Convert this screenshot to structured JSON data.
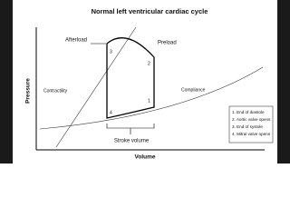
{
  "title": "Normal left ventricular cardiac cycle",
  "axes": {
    "y": "Pressure",
    "x": "Volume"
  },
  "curves": {
    "contractility": "Contractility",
    "compliance": "Compliance",
    "afterload": "Afterload",
    "preload": "Preload"
  },
  "points": [
    "1",
    "2",
    "3",
    "4"
  ],
  "stroke_volume": "Stroke volume",
  "legend": [
    "1. End of diastole",
    "2. Aortic valve opens",
    "3. End of systole",
    "4. Mitral valve opens"
  ]
}
